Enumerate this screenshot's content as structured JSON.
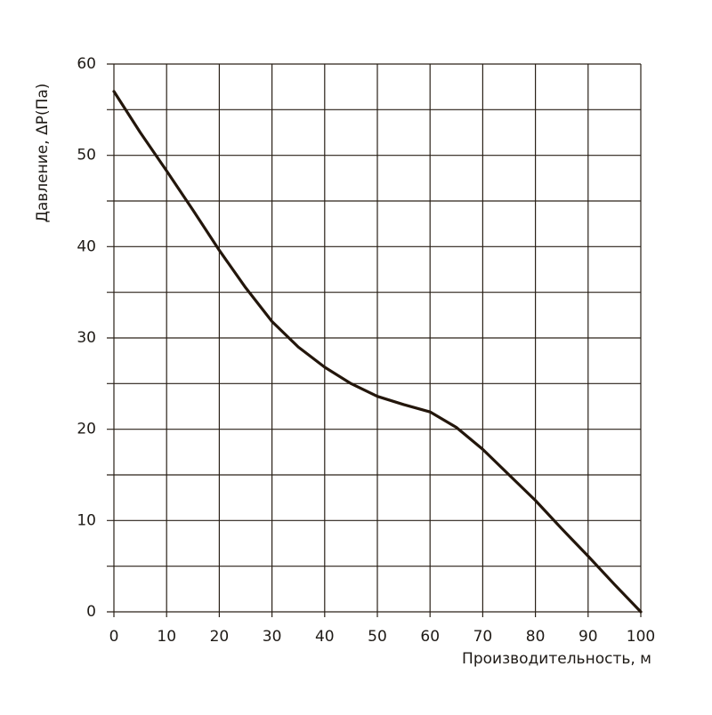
{
  "chart_data": {
    "type": "line",
    "x_label": "Производительность, м",
    "y_label": "Давление, ΔP(Па)",
    "x": [
      0,
      5,
      10,
      15,
      20,
      25,
      30,
      35,
      40,
      45,
      50,
      55,
      60,
      65,
      70,
      75,
      80,
      85,
      90,
      95,
      100
    ],
    "series": [
      {
        "color": "#23160b",
        "values": [
          57,
          52.5,
          48.3,
          44,
          39.6,
          35.5,
          31.8,
          29,
          26.8,
          25,
          23.6,
          22.7,
          21.9,
          20.2,
          17.8,
          15,
          12.2,
          9.1,
          6.1,
          3,
          0
        ]
      }
    ],
    "xlim": [
      0,
      100
    ],
    "ylim": [
      0,
      60
    ],
    "xticks": [
      0,
      10,
      20,
      30,
      40,
      50,
      60,
      70,
      80,
      90,
      100
    ],
    "yticks": [
      0,
      10,
      20,
      30,
      40,
      50,
      60
    ],
    "yminor": [
      5,
      15,
      25,
      35,
      45,
      55
    ],
    "grid": true
  }
}
